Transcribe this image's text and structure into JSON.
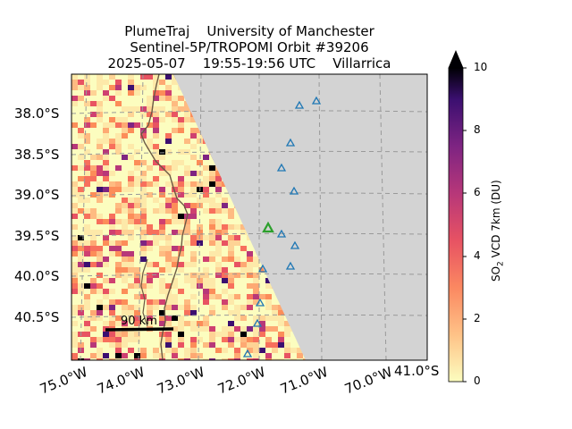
{
  "title": {
    "line1": "PlumeTraj    University of Manchester",
    "line2": "Sentinel-5P/TROPOMI Orbit #39206",
    "line3": "2025-05-07    19:55-19:56 UTC    Villarrica"
  },
  "axes": {
    "lat_labels": [
      "38.0°S",
      "38.5°S",
      "39.0°S",
      "39.5°S",
      "40.0°S",
      "40.5°S"
    ],
    "lon_labels": [
      "75.0°W",
      "74.0°W",
      "73.0°W",
      "72.0°W",
      "71.0°W",
      "70.0°W"
    ],
    "corner_label": "41.0°S"
  },
  "colorbar": {
    "label_prefix": "SO",
    "label_sub": "2",
    "label_suffix": " VCD 7km (DU)",
    "ticks": [
      "0",
      "2",
      "4",
      "6",
      "8",
      "10"
    ],
    "colormap": "magma_r",
    "extend": "max"
  },
  "scale_bar": {
    "label": "90 km"
  },
  "markers": {
    "volcano_color": "#2ca02c",
    "station_color": "#1f77b4"
  },
  "colors": {
    "land": "#d3d3d3",
    "coastline": "#6b5a45",
    "grid": "#999999"
  }
}
